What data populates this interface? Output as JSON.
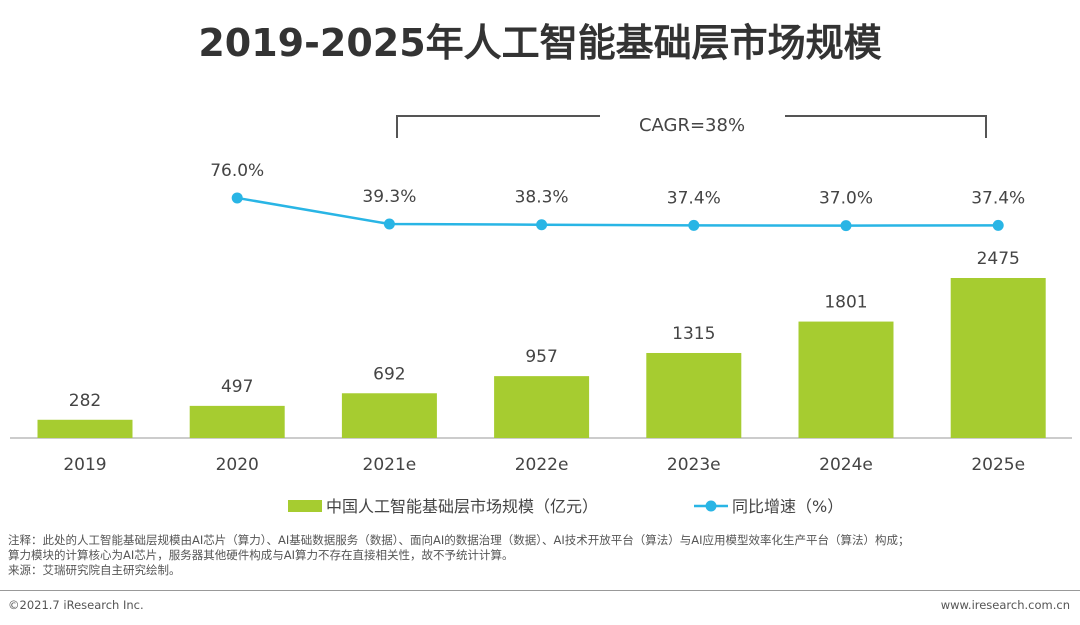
{
  "chart_data": {
    "type": "bar+line",
    "title": "2019-2025年人工智能基础层市场规模",
    "categories": [
      "2019",
      "2020",
      "2021e",
      "2022e",
      "2023e",
      "2024e",
      "2025e"
    ],
    "series": [
      {
        "name": "中国人工智能基础层市场规模（亿元）",
        "type": "bar",
        "color": "#a6cc30",
        "values": [
          282,
          497,
          692,
          957,
          1315,
          1801,
          2475
        ],
        "labels": [
          "282",
          "497",
          "692",
          "957",
          "1315",
          "1801",
          "2475"
        ]
      },
      {
        "name": "同比增速（%）",
        "type": "line",
        "color": "#29b5e5",
        "values": [
          null,
          76.0,
          39.3,
          38.3,
          37.4,
          37.0,
          37.4
        ],
        "labels": [
          "",
          "76.0%",
          "39.3%",
          "38.3%",
          "37.4%",
          "37.0%",
          "37.4%"
        ]
      }
    ],
    "annotation": "CAGR=38%",
    "legend_position": "bottom",
    "grid": false
  },
  "notes": {
    "line1": "注释：此处的人工智能基础层规模由AI芯片（算力）、AI基础数据服务（数据）、面向AI的数据治理（数据）、AI技术开放平台（算法）与AI应用模型效率化生产平台（算法）构成；",
    "line2": "算力模块的计算核心为AI芯片，服务器其他硬件构成与AI算力不存在直接相关性，故不予统计计算。",
    "source": "来源：艾瑞研究院自主研究绘制。"
  },
  "footer": {
    "copyright": "©2021.7 iResearch Inc.",
    "url": "www.iresearch.com.cn"
  }
}
